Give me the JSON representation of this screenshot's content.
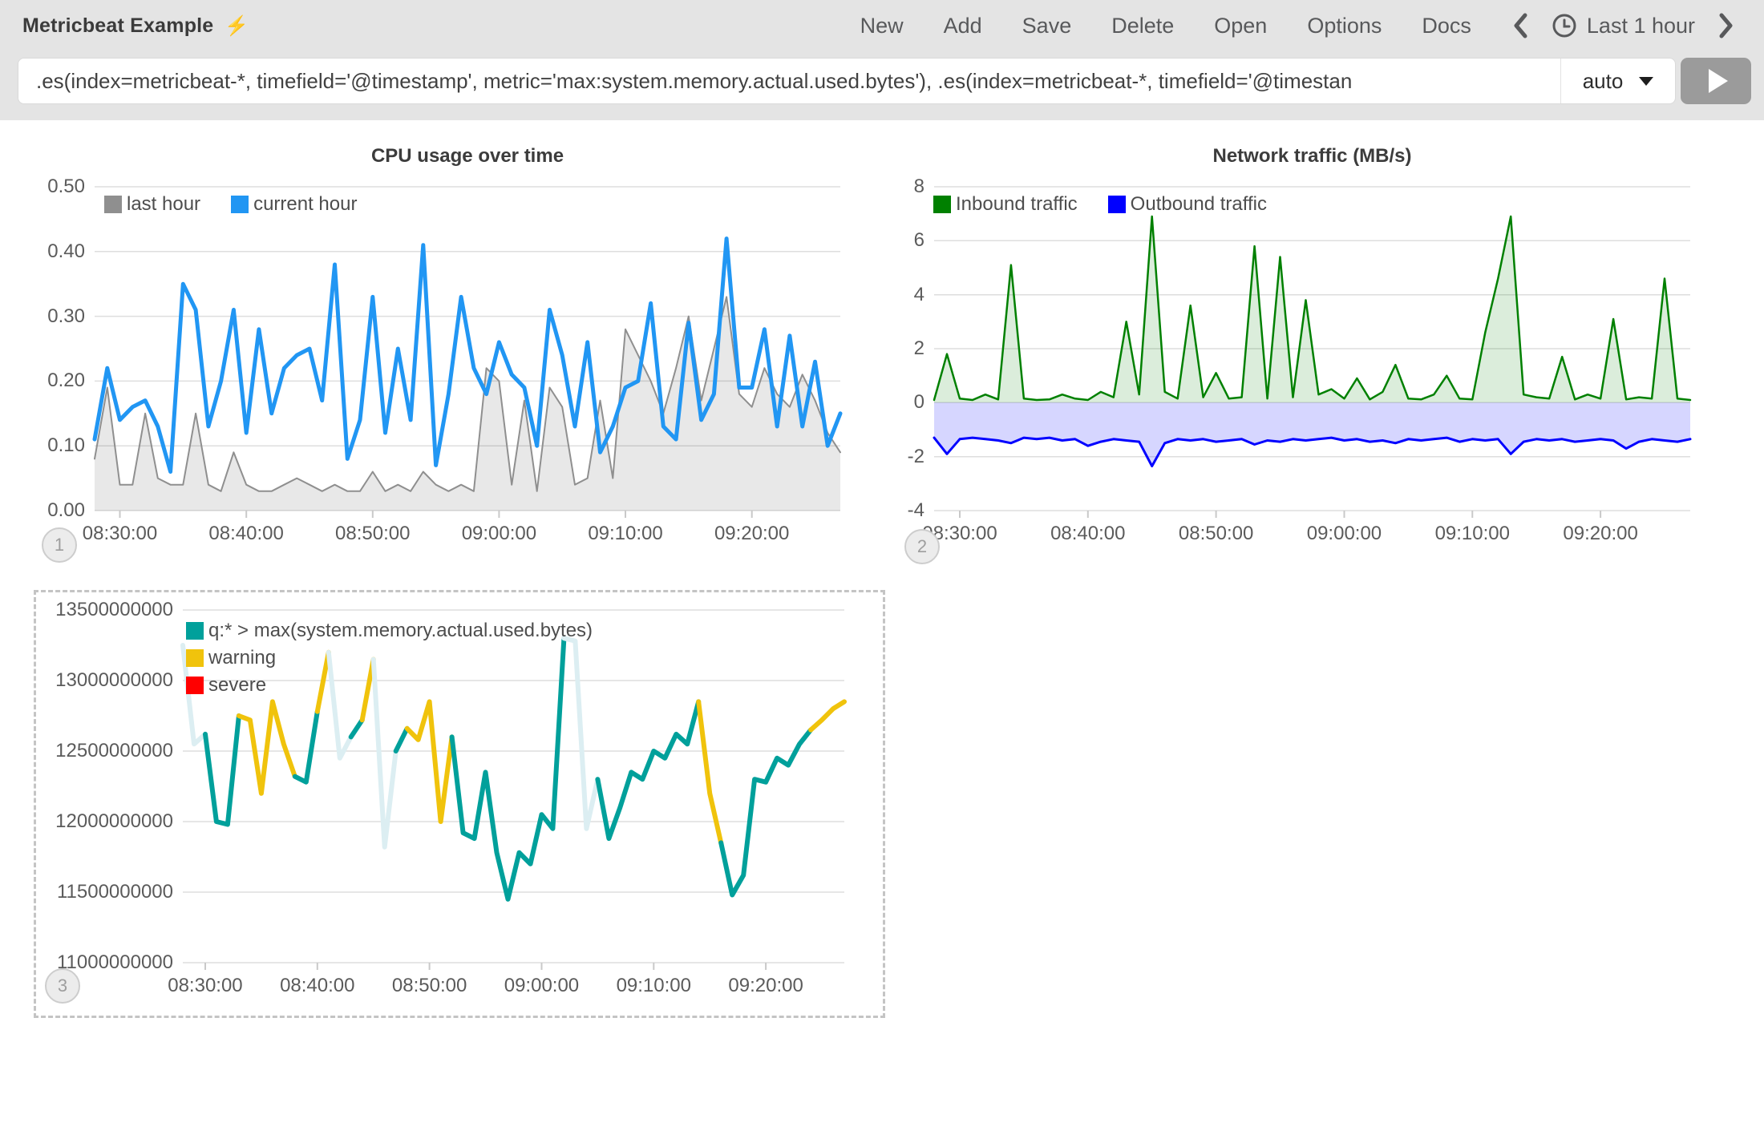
{
  "header": {
    "title": "Metricbeat Example",
    "icons": {
      "bolt": "⚡"
    },
    "nav": [
      "New",
      "Add",
      "Save",
      "Delete",
      "Open",
      "Options",
      "Docs"
    ],
    "time_picker": {
      "label": "Last 1 hour"
    }
  },
  "query_bar": {
    "value": ".es(index=metricbeat-*, timefield='@timestamp', metric='max:system.memory.actual.used.bytes'), .es(index=metricbeat-*, timefield='@timestan",
    "interval": {
      "value": "auto"
    }
  },
  "badges": {
    "labels": [
      "1",
      "2",
      "3"
    ]
  },
  "chart_data": [
    {
      "type": "line",
      "title": "CPU usage over time",
      "x_start": "08:28:00",
      "x_interval_seconds": 60,
      "x_tick_labels": [
        "08:30:00",
        "08:40:00",
        "08:50:00",
        "09:00:00",
        "09:10:00",
        "09:20:00"
      ],
      "x_tick_minutes": [
        2,
        12,
        22,
        32,
        42,
        52
      ],
      "ylim": [
        0,
        0.5
      ],
      "y_tick_values": [
        0.5,
        0.4,
        0.3,
        0.2,
        0.1,
        0
      ],
      "y_tick_labels": [
        "0.50",
        "0.40",
        "0.30",
        "0.20",
        "0.10",
        "0.00"
      ],
      "grid": true,
      "legend_position": "top-left",
      "legend": [
        {
          "label": "last hour",
          "color": "#8f8f8f"
        },
        {
          "label": "current hour",
          "color": "#2196f3"
        }
      ],
      "series": [
        {
          "name": "last hour",
          "color": "#8f8f8f",
          "width": 2,
          "fill": "rgba(0,0,0,0.09)",
          "fill_to": "bottom",
          "values": [
            0.08,
            0.19,
            0.04,
            0.04,
            0.15,
            0.05,
            0.04,
            0.04,
            0.15,
            0.04,
            0.03,
            0.09,
            0.04,
            0.03,
            0.03,
            0.04,
            0.05,
            0.04,
            0.03,
            0.04,
            0.03,
            0.03,
            0.06,
            0.03,
            0.04,
            0.03,
            0.06,
            0.04,
            0.03,
            0.04,
            0.03,
            0.22,
            0.2,
            0.04,
            0.17,
            0.03,
            0.19,
            0.16,
            0.04,
            0.05,
            0.17,
            0.05,
            0.28,
            0.24,
            0.2,
            0.15,
            0.22,
            0.3,
            0.17,
            0.25,
            0.33,
            0.18,
            0.16,
            0.22,
            0.18,
            0.16,
            0.21,
            0.17,
            0.12,
            0.09
          ]
        },
        {
          "name": "current hour",
          "color": "#2196f3",
          "width": 5,
          "fill": "none",
          "values": [
            0.11,
            0.22,
            0.14,
            0.16,
            0.17,
            0.13,
            0.06,
            0.35,
            0.31,
            0.13,
            0.2,
            0.31,
            0.12,
            0.28,
            0.15,
            0.22,
            0.24,
            0.25,
            0.17,
            0.38,
            0.08,
            0.14,
            0.33,
            0.12,
            0.25,
            0.14,
            0.41,
            0.07,
            0.18,
            0.33,
            0.22,
            0.18,
            0.26,
            0.21,
            0.19,
            0.1,
            0.31,
            0.24,
            0.13,
            0.26,
            0.09,
            0.13,
            0.19,
            0.2,
            0.32,
            0.13,
            0.11,
            0.29,
            0.14,
            0.18,
            0.42,
            0.19,
            0.19,
            0.28,
            0.13,
            0.27,
            0.13,
            0.23,
            0.1,
            0.15
          ]
        }
      ]
    },
    {
      "type": "line",
      "title": "Network traffic (MB/s)",
      "x_start": "08:28:00",
      "x_interval_seconds": 60,
      "x_tick_labels": [
        "08:30:00",
        "08:40:00",
        "08:50:00",
        "09:00:00",
        "09:10:00",
        "09:20:00"
      ],
      "x_tick_minutes": [
        2,
        12,
        22,
        32,
        42,
        52
      ],
      "ylim": [
        -4,
        8
      ],
      "y_tick_values": [
        8,
        6,
        4,
        2,
        0,
        -2,
        -4
      ],
      "y_tick_labels": [
        "8",
        "6",
        "4",
        "2",
        "0",
        "-2",
        "-4"
      ],
      "grid": true,
      "legend_position": "top-left",
      "legend": [
        {
          "label": "Inbound traffic",
          "color": "#008000"
        },
        {
          "label": "Outbound traffic",
          "color": "#0000ff"
        }
      ],
      "series": [
        {
          "name": "Inbound traffic",
          "color": "#008000",
          "width": 2.5,
          "fill": "rgba(0,128,0,0.14)",
          "fill_to": "zero",
          "values": [
            0.1,
            1.8,
            0.15,
            0.1,
            0.3,
            0.12,
            5.1,
            0.15,
            0.1,
            0.12,
            0.3,
            0.15,
            0.1,
            0.4,
            0.2,
            3.0,
            0.3,
            6.9,
            0.4,
            0.15,
            3.6,
            0.2,
            1.1,
            0.15,
            0.2,
            5.8,
            0.15,
            5.4,
            0.2,
            3.8,
            0.3,
            0.5,
            0.15,
            0.9,
            0.12,
            0.4,
            1.4,
            0.15,
            0.12,
            0.3,
            1.0,
            0.15,
            0.12,
            2.6,
            4.6,
            6.9,
            0.3,
            0.2,
            0.15,
            1.7,
            0.12,
            0.3,
            0.15,
            3.1,
            0.12,
            0.2,
            0.15,
            4.6,
            0.15,
            0.1
          ]
        },
        {
          "name": "Outbound traffic",
          "color": "#0000ff",
          "width": 3,
          "fill": "rgba(0,0,255,0.16)",
          "fill_to": "zero",
          "values": [
            -1.3,
            -1.9,
            -1.35,
            -1.3,
            -1.35,
            -1.4,
            -1.5,
            -1.3,
            -1.35,
            -1.3,
            -1.4,
            -1.35,
            -1.6,
            -1.45,
            -1.35,
            -1.4,
            -1.45,
            -2.35,
            -1.5,
            -1.35,
            -1.4,
            -1.35,
            -1.45,
            -1.4,
            -1.35,
            -1.55,
            -1.4,
            -1.45,
            -1.35,
            -1.4,
            -1.35,
            -1.3,
            -1.4,
            -1.35,
            -1.45,
            -1.4,
            -1.5,
            -1.35,
            -1.4,
            -1.35,
            -1.3,
            -1.45,
            -1.35,
            -1.4,
            -1.35,
            -1.9,
            -1.45,
            -1.35,
            -1.4,
            -1.35,
            -1.45,
            -1.4,
            -1.35,
            -1.4,
            -1.7,
            -1.45,
            -1.35,
            -1.4,
            -1.45,
            -1.35
          ]
        }
      ]
    },
    {
      "type": "line",
      "title": "",
      "selected": true,
      "x_start": "08:28:00",
      "x_interval_seconds": 60,
      "x_tick_labels": [
        "08:30:00",
        "08:40:00",
        "08:50:00",
        "09:00:00",
        "09:10:00",
        "09:20:00"
      ],
      "x_tick_minutes": [
        2,
        12,
        22,
        32,
        42,
        52
      ],
      "ylim": [
        11000000000,
        13500000000
      ],
      "y_tick_values": [
        13500000000,
        13000000000,
        12500000000,
        12000000000,
        11500000000,
        11000000000
      ],
      "y_tick_labels": [
        "13500000000",
        "13000000000",
        "12500000000",
        "12000000000",
        "11500000000",
        "11000000000"
      ],
      "grid": true,
      "legend_position": "top-left-vertical",
      "legend": [
        {
          "label": "q:* > max(system.memory.actual.used.bytes)",
          "color": "#00a09b"
        },
        {
          "label": "warning",
          "color": "#f0c30c"
        },
        {
          "label": "severe",
          "color": "#ff0000"
        }
      ],
      "series": [
        {
          "name": "q:* > max(system.memory.actual.used.bytes)",
          "color": "#00a09b",
          "width": 6,
          "fill": "none",
          "threshold_segments": {
            "warning_above": 12640000000,
            "warning_color": "#f0c30c",
            "halo_above": 12950000000,
            "halo_color": "#dceef2",
            "severe_color": "#ff0000"
          },
          "values": [
            13250000000,
            12550000000,
            12620000000,
            12000000000,
            11980000000,
            12750000000,
            12720000000,
            12200000000,
            12850000000,
            12550000000,
            12320000000,
            12280000000,
            12780000000,
            13200000000,
            12450000000,
            12600000000,
            12720000000,
            13150000000,
            11820000000,
            12500000000,
            12660000000,
            12580000000,
            12850000000,
            12000000000,
            12600000000,
            11920000000,
            11880000000,
            12350000000,
            11780000000,
            11450000000,
            11780000000,
            11700000000,
            12050000000,
            11950000000,
            13300000000,
            13280000000,
            11950000000,
            12300000000,
            11880000000,
            12100000000,
            12350000000,
            12300000000,
            12500000000,
            12450000000,
            12620000000,
            12550000000,
            12850000000,
            12200000000,
            11850000000,
            11480000000,
            11620000000,
            12300000000,
            12280000000,
            12450000000,
            12400000000,
            12550000000,
            12650000000,
            12720000000,
            12800000000,
            12850000000
          ]
        }
      ]
    }
  ]
}
